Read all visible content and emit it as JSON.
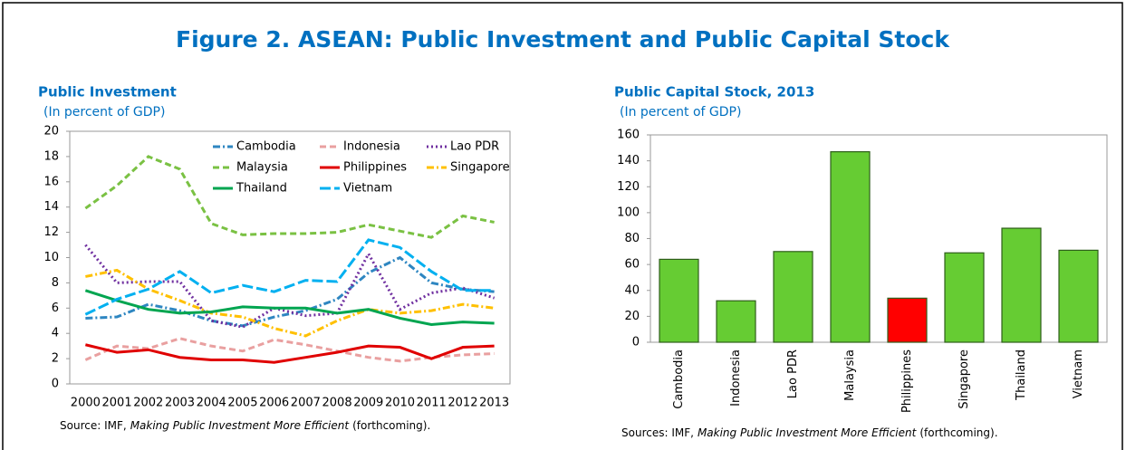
{
  "title": "Figure 2. ASEAN: Public Investment and Public Capital Stock",
  "chart_data": [
    {
      "type": "line",
      "title": "Public Investment",
      "subtitle": "(In percent of GDP)",
      "categories": [
        "2000",
        "2001",
        "2002",
        "2003",
        "2004",
        "2005",
        "2006",
        "2007",
        "2008",
        "2009",
        "2010",
        "2011",
        "2012",
        "2013"
      ],
      "ylim": [
        0,
        20
      ],
      "yticks": [
        0,
        2,
        4,
        6,
        8,
        10,
        12,
        14,
        16,
        18,
        20
      ],
      "grid": false,
      "legend": "top-right",
      "series": [
        {
          "name": "Cambodia",
          "color": "#2E86C1",
          "style": "dashdot",
          "values": [
            5.2,
            5.3,
            6.3,
            5.8,
            5.0,
            4.6,
            5.3,
            5.8,
            6.7,
            8.8,
            10.0,
            8.0,
            7.5,
            7.3
          ]
        },
        {
          "name": "Indonesia",
          "color": "#E9A0A0",
          "style": "dash",
          "values": [
            1.9,
            3.0,
            2.8,
            3.6,
            3.0,
            2.6,
            3.5,
            3.1,
            2.6,
            2.1,
            1.8,
            2.1,
            2.3,
            2.4
          ]
        },
        {
          "name": "Lao PDR",
          "color": "#7030A0",
          "style": "dot",
          "values": [
            11.0,
            8.0,
            8.1,
            8.1,
            5.0,
            4.5,
            6.0,
            5.4,
            5.6,
            10.3,
            5.9,
            7.2,
            7.6,
            6.8
          ]
        },
        {
          "name": "Malaysia",
          "color": "#7AC143",
          "style": "dash",
          "values": [
            13.9,
            15.7,
            18.0,
            17.0,
            12.7,
            11.8,
            11.9,
            11.9,
            12.0,
            12.6,
            12.1,
            11.6,
            13.3,
            12.8
          ]
        },
        {
          "name": "Philippines",
          "color": "#E00000",
          "style": "solid",
          "values": [
            3.1,
            2.5,
            2.7,
            2.1,
            1.9,
            1.9,
            1.7,
            2.1,
            2.5,
            3.0,
            2.9,
            2.0,
            2.9,
            3.0
          ]
        },
        {
          "name": "Singapore",
          "color": "#FFC000",
          "style": "dashdot",
          "values": [
            8.5,
            9.0,
            7.5,
            6.6,
            5.6,
            5.3,
            4.4,
            3.8,
            5.0,
            5.9,
            5.6,
            5.8,
            6.3,
            6.0
          ]
        },
        {
          "name": "Thailand",
          "color": "#00A550",
          "style": "solid",
          "values": [
            7.4,
            6.6,
            5.9,
            5.6,
            5.7,
            6.1,
            6.0,
            6.0,
            5.6,
            5.9,
            5.2,
            4.7,
            4.9,
            4.8
          ]
        },
        {
          "name": "Vietnam",
          "color": "#00B0F0",
          "style": "longdash",
          "values": [
            5.5,
            6.7,
            7.5,
            8.9,
            7.2,
            7.8,
            7.3,
            8.2,
            8.1,
            11.4,
            10.8,
            8.9,
            7.4,
            7.4
          ]
        }
      ],
      "source": {
        "text": "Source: IMF,",
        "italic": "Making Public Investment More Efficient",
        "end": "(forthcoming)."
      }
    },
    {
      "type": "bar",
      "title": "Public Capital Stock, 2013",
      "subtitle": "(In percent of GDP)",
      "categories": [
        "Cambodia",
        "Indonesia",
        "Lao PDR",
        "Malaysia",
        "Philippines",
        "Singapore",
        "Thailand",
        "Vietnam"
      ],
      "values": [
        64,
        32,
        70,
        147,
        34,
        69,
        88,
        71
      ],
      "colors": [
        "#66CC33",
        "#66CC33",
        "#66CC33",
        "#66CC33",
        "#FF0000",
        "#66CC33",
        "#66CC33",
        "#66CC33"
      ],
      "ylim": [
        0,
        160
      ],
      "yticks": [
        0,
        20,
        40,
        60,
        80,
        100,
        120,
        140,
        160
      ],
      "grid": false,
      "source": {
        "text": "Sources: IMF,",
        "italic": "Making Public Investment More Efficient",
        "end": "(forthcoming)."
      }
    }
  ]
}
